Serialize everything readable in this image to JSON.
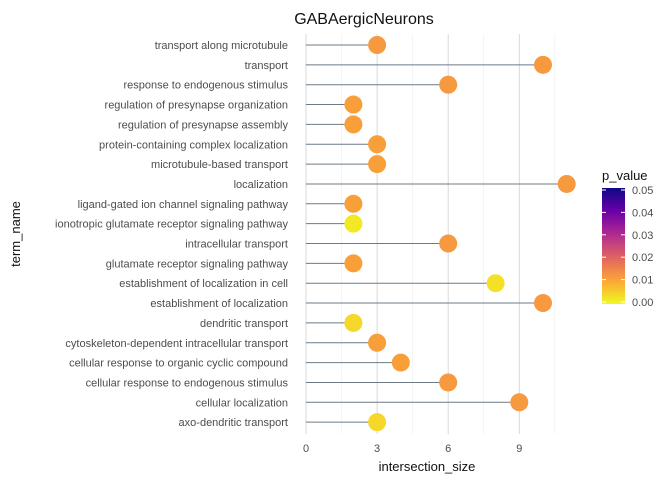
{
  "chart_data": {
    "type": "lollipop",
    "title": "GABAergicNeurons",
    "xlabel": "intersection_size",
    "ylabel": "term_name",
    "xlim": [
      0,
      11.3
    ],
    "xticks": [
      0,
      3,
      6,
      9
    ],
    "grid": true,
    "legend_position": "right",
    "legend": {
      "title": "p_value",
      "min": 0,
      "max": 0.05,
      "ticks": [
        "0.05",
        "0.04",
        "0.03",
        "0.02",
        "0.01",
        "0.00"
      ],
      "colors": [
        "#0d0887",
        "#6a00a8",
        "#b12a90",
        "#e16462",
        "#fca636",
        "#f0f921"
      ]
    },
    "terms": [
      {
        "term": "transport along microtubule",
        "value": 3,
        "p_value": 0.012
      },
      {
        "term": "transport",
        "value": 10,
        "p_value": 0.012
      },
      {
        "term": "response to endogenous stimulus",
        "value": 6,
        "p_value": 0.012
      },
      {
        "term": "regulation of presynapse organization",
        "value": 2,
        "p_value": 0.011
      },
      {
        "term": "regulation of presynapse assembly",
        "value": 2,
        "p_value": 0.011
      },
      {
        "term": "protein-containing complex localization",
        "value": 3,
        "p_value": 0.011
      },
      {
        "term": "microtubule-based transport",
        "value": 3,
        "p_value": 0.011
      },
      {
        "term": "localization",
        "value": 11,
        "p_value": 0.012
      },
      {
        "term": "ligand-gated ion channel signaling pathway",
        "value": 2,
        "p_value": 0.011
      },
      {
        "term": "ionotropic glutamate receptor signaling pathway",
        "value": 2,
        "p_value": 0.002
      },
      {
        "term": "intracellular transport",
        "value": 6,
        "p_value": 0.012
      },
      {
        "term": "glutamate receptor signaling pathway",
        "value": 2,
        "p_value": 0.011
      },
      {
        "term": "establishment of localization in cell",
        "value": 8,
        "p_value": 0.003
      },
      {
        "term": "establishment of localization",
        "value": 10,
        "p_value": 0.012
      },
      {
        "term": "dendritic transport",
        "value": 2,
        "p_value": 0.004
      },
      {
        "term": "cytoskeleton-dependent intracellular transport",
        "value": 3,
        "p_value": 0.011
      },
      {
        "term": "cellular response to organic cyclic compound",
        "value": 4,
        "p_value": 0.011
      },
      {
        "term": "cellular response to endogenous stimulus",
        "value": 6,
        "p_value": 0.012
      },
      {
        "term": "cellular localization",
        "value": 9,
        "p_value": 0.012
      },
      {
        "term": "axo-dendritic transport",
        "value": 3,
        "p_value": 0.004
      }
    ]
  }
}
